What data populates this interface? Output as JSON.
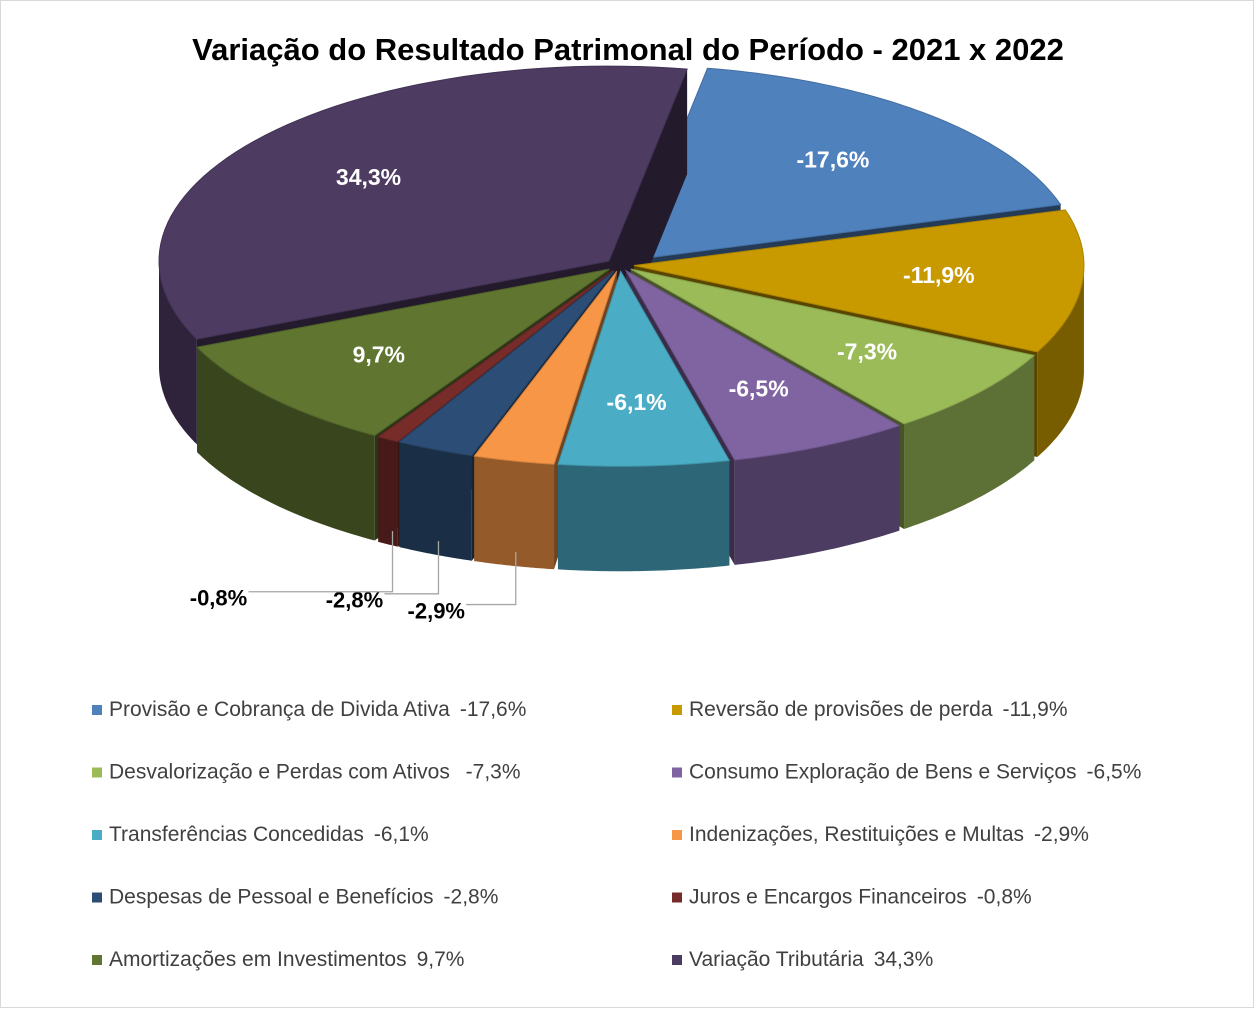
{
  "chart_data": {
    "type": "pie",
    "title": "Variação do Resultado Patrimonal do Período - 2021 x 2022",
    "categories": [
      " Provisão e Cobrança de Divida Ativa",
      "Reversão de provisões de perda",
      "Desvalorização e Perdas com Ativos ",
      "Consumo Exploração de Bens e Serviços",
      "Transferências Concedidas",
      "Indenizações, Restituições e Multas",
      "Despesas de Pessoal e Benefícios",
      "Juros e Encargos Financeiros",
      "Amortizações em Investimentos",
      "Variação Tributária"
    ],
    "values": [
      -17.6,
      -11.9,
      -7.3,
      -6.5,
      -6.1,
      -2.9,
      -2.8,
      -0.8,
      9.7,
      34.3
    ],
    "value_labels": [
      "-17,6%",
      "-11,9%",
      "-7,3%",
      "-6,5%",
      "-6,1%",
      "-2,9%",
      "-2,8%",
      "-0,8%",
      "9,7%",
      "34,3%"
    ],
    "colors": [
      "#4f81bd",
      "#c89a00",
      "#9bbb59",
      "#8064a2",
      "#4bacc6",
      "#f79646",
      "#2c4d75",
      "#772c2a",
      "#5f7530",
      "#4d3b62"
    ]
  }
}
